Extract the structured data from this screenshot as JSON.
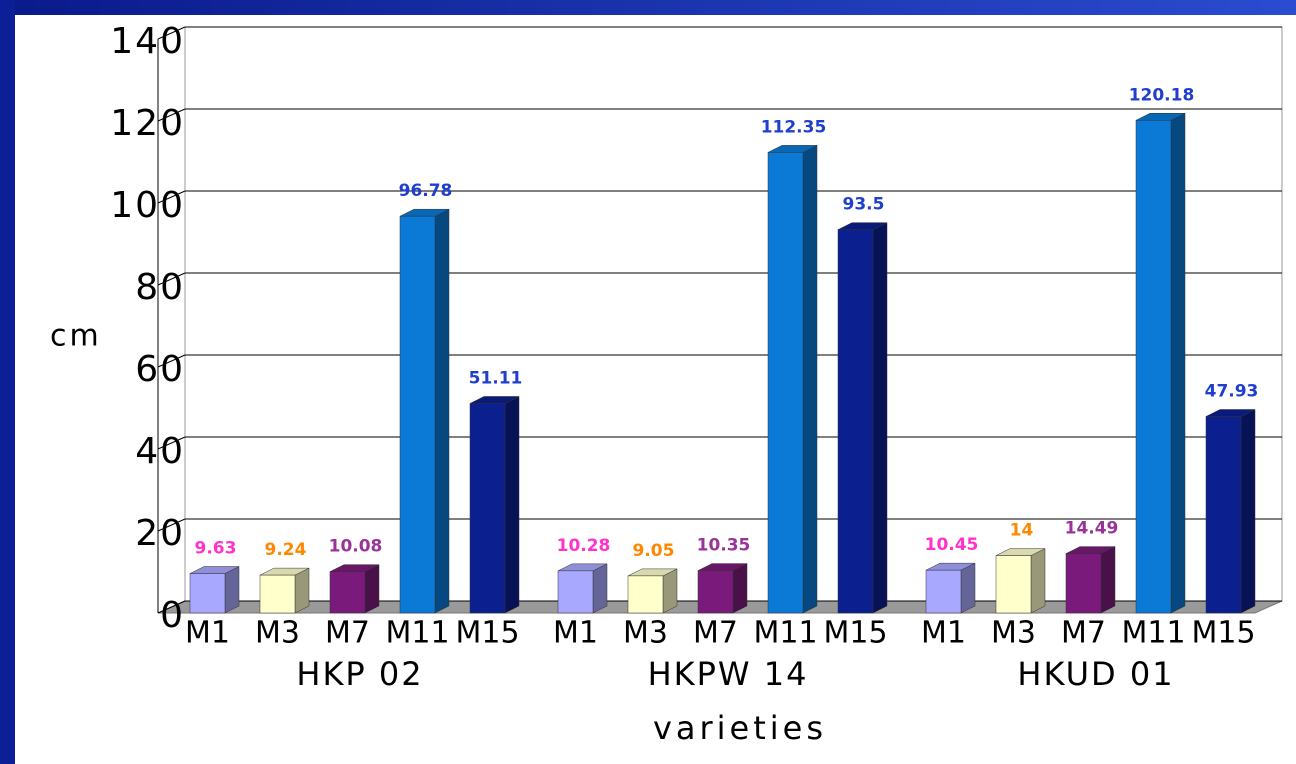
{
  "chart_data": {
    "type": "bar3d",
    "y_label": "cm",
    "x_label": "varieties",
    "categories": [
      "HKP 02",
      "HKPW 14",
      "HKUD 01"
    ],
    "series": [
      {
        "name": "M1",
        "color": "#a8a8ff",
        "label_color": "#ff33cc",
        "values": [
          9.63,
          10.28,
          10.45
        ]
      },
      {
        "name": "M3",
        "color": "#ffffcc",
        "label_color": "#ff8800",
        "values": [
          9.24,
          9.05,
          14
        ]
      },
      {
        "name": "M7",
        "color": "#7a1a7a",
        "label_color": "#993399",
        "values": [
          10.08,
          10.35,
          14.49
        ]
      },
      {
        "name": "M11",
        "color": "#0a7ad6",
        "label_color": "#1f3fcc",
        "values": [
          96.78,
          112.35,
          120.18
        ]
      },
      {
        "name": "M15",
        "color": "#0b1f8f",
        "label_color": "#1f3fcc",
        "values": [
          51.11,
          93.5,
          47.93
        ]
      }
    ],
    "ylim": [
      0,
      140
    ],
    "yticks": [
      0,
      20,
      40,
      60,
      80,
      100,
      120,
      140
    ],
    "grid": true
  }
}
